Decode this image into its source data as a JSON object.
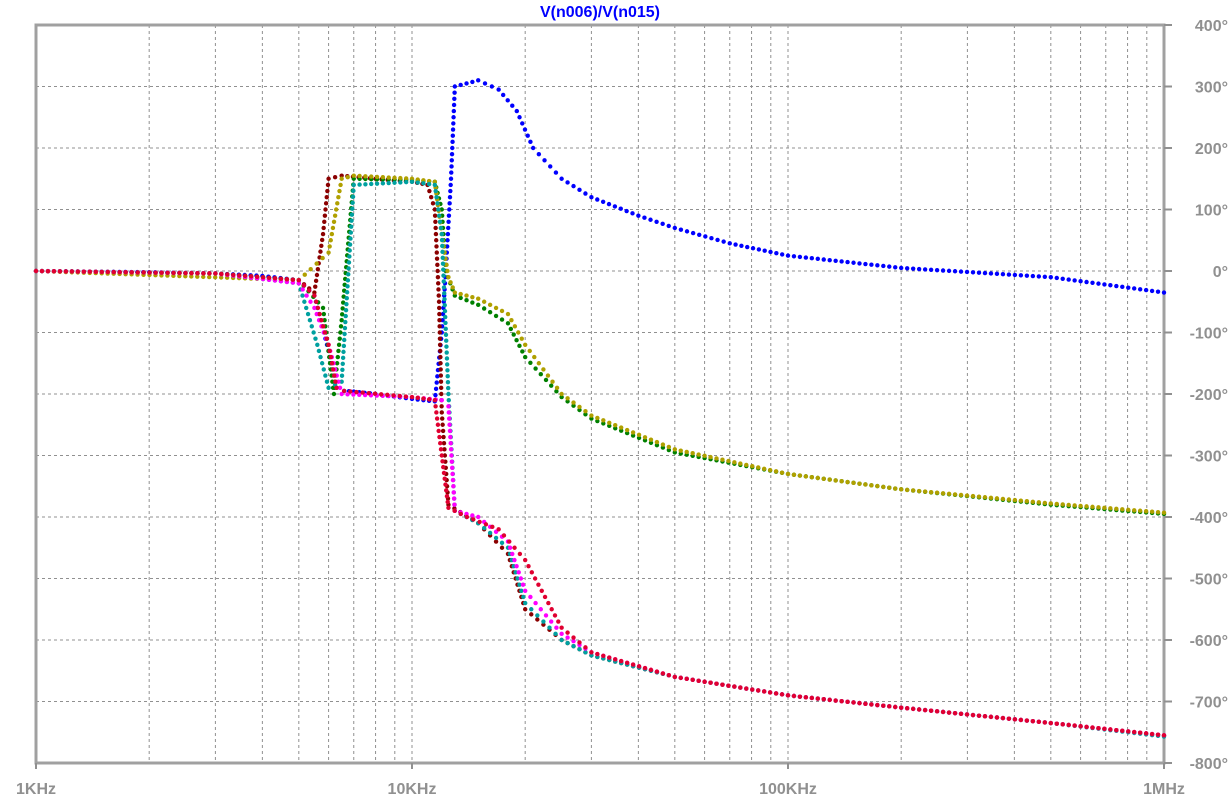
{
  "chart_data": {
    "type": "scatter",
    "title": "V(n006)/V(n015)",
    "xscale": "log",
    "xlim": [
      1000,
      1000000
    ],
    "ylim": [
      -800,
      400
    ],
    "grid": true,
    "x_ticks": [
      {
        "value": 1000,
        "label": "1KHz"
      },
      {
        "value": 10000,
        "label": "10KHz"
      },
      {
        "value": 100000,
        "label": "100KHz"
      },
      {
        "value": 1000000,
        "label": "1MHz"
      }
    ],
    "y_ticks": [
      {
        "value": 400,
        "label": "400°"
      },
      {
        "value": 300,
        "label": "300°"
      },
      {
        "value": 200,
        "label": "200°"
      },
      {
        "value": 100,
        "label": "100°"
      },
      {
        "value": 0,
        "label": "0°"
      },
      {
        "value": -100,
        "label": "-100°"
      },
      {
        "value": -200,
        "label": "-200°"
      },
      {
        "value": -300,
        "label": "-300°"
      },
      {
        "value": -400,
        "label": "-400°"
      },
      {
        "value": -500,
        "label": "-500°"
      },
      {
        "value": -600,
        "label": "-600°"
      },
      {
        "value": -700,
        "label": "-700°"
      },
      {
        "value": -800,
        "label": "-800°"
      }
    ],
    "series": [
      {
        "name": "blue",
        "color": "#0000ff",
        "x": [
          1000,
          2000,
          3000,
          4000,
          5000,
          5500,
          6000,
          6300,
          6600,
          7000,
          8000,
          10000,
          11500,
          12000,
          12300,
          12700,
          13000,
          15000,
          17000,
          19000,
          21000,
          25000,
          30000,
          40000,
          50000,
          70000,
          100000,
          200000,
          500000,
          1000000
        ],
        "y": [
          0,
          -2,
          -4,
          -8,
          -15,
          -40,
          -130,
          -190,
          -195,
          -196,
          -200,
          -208,
          -212,
          -100,
          0,
          150,
          300,
          310,
          295,
          260,
          200,
          150,
          120,
          90,
          70,
          45,
          25,
          5,
          -10,
          -35
        ]
      },
      {
        "name": "dark-red",
        "color": "#8b0000",
        "x": [
          1000,
          3000,
          5000,
          5500,
          5800,
          6000,
          6500,
          8000,
          10000,
          11000,
          11500,
          11800,
          12000,
          12500,
          15000,
          18000,
          20000,
          25000,
          30000,
          50000,
          100000,
          200000,
          500000,
          1000000
        ],
        "y": [
          0,
          -4,
          -15,
          -35,
          60,
          150,
          155,
          150,
          145,
          140,
          100,
          -50,
          -230,
          -380,
          -410,
          -460,
          -550,
          -600,
          -625,
          -660,
          -690,
          -710,
          -735,
          -755
        ]
      },
      {
        "name": "green",
        "color": "#008000",
        "x": [
          1000,
          3000,
          5000,
          5800,
          6200,
          6500,
          7000,
          10000,
          11500,
          12000,
          12300,
          13000,
          15000,
          18000,
          20000,
          25000,
          30000,
          50000,
          100000,
          200000,
          500000,
          1000000
        ],
        "y": [
          0,
          -4,
          -15,
          -60,
          -200,
          -80,
          150,
          148,
          145,
          100,
          0,
          -40,
          -55,
          -85,
          -140,
          -205,
          -240,
          -295,
          -330,
          -355,
          -380,
          -395
        ]
      },
      {
        "name": "olive",
        "color": "#b0a000",
        "x": [
          1000,
          5000,
          6000,
          6500,
          7000,
          10000,
          11500,
          12000,
          12500,
          13000,
          15000,
          18000,
          20000,
          25000,
          30000,
          50000,
          100000,
          200000,
          500000,
          1000000
        ],
        "y": [
          0,
          -15,
          30,
          150,
          155,
          150,
          145,
          60,
          -10,
          -35,
          -45,
          -70,
          -120,
          -200,
          -235,
          -290,
          -330,
          -355,
          -378,
          -393
        ]
      },
      {
        "name": "teal",
        "color": "#00a0a0",
        "x": [
          1000,
          3000,
          5000,
          5600,
          6000,
          6500,
          7000,
          10000,
          11500,
          12000,
          12500,
          13000,
          15000,
          18000,
          20000,
          25000,
          30000,
          50000,
          100000,
          200000,
          500000,
          1000000
        ],
        "y": [
          0,
          -4,
          -20,
          -120,
          -190,
          -180,
          140,
          145,
          140,
          60,
          -200,
          -390,
          -410,
          -450,
          -540,
          -600,
          -625,
          -660,
          -690,
          -710,
          -735,
          -757
        ]
      },
      {
        "name": "magenta",
        "color": "#ff00ff",
        "x": [
          1000,
          3000,
          5000,
          5500,
          6000,
          6500,
          10000,
          12000,
          12500,
          13000,
          15000,
          18000,
          20000,
          25000,
          30000,
          50000,
          100000,
          200000,
          500000,
          1000000
        ],
        "y": [
          0,
          -4,
          -20,
          -60,
          -120,
          -200,
          -205,
          -210,
          -220,
          -390,
          -400,
          -440,
          -520,
          -590,
          -620,
          -660,
          -690,
          -710,
          -735,
          -755
        ]
      },
      {
        "name": "red",
        "color": "#e00030",
        "x": [
          1000,
          3000,
          5000,
          5500,
          6000,
          6300,
          6600,
          10000,
          11500,
          12000,
          12500,
          14000,
          17000,
          20000,
          25000,
          30000,
          50000,
          100000,
          200000,
          500000,
          1000000
        ],
        "y": [
          0,
          -4,
          -15,
          -40,
          -120,
          -190,
          -195,
          -205,
          -210,
          -300,
          -385,
          -400,
          -420,
          -470,
          -580,
          -620,
          -660,
          -690,
          -710,
          -735,
          -755
        ]
      }
    ]
  }
}
